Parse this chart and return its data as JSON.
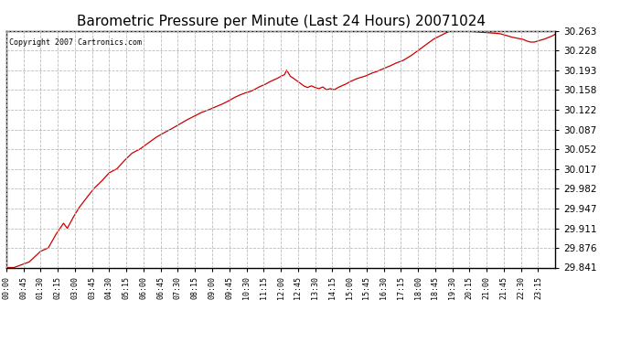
{
  "title": "Barometric Pressure per Minute (Last 24 Hours) 20071024",
  "copyright_text": "Copyright 2007 Cartronics.com",
  "line_color": "#cc0000",
  "background_color": "#ffffff",
  "plot_background": "#ffffff",
  "grid_color": "#bbbbbb",
  "title_fontsize": 11,
  "copyright_fontsize": 6,
  "y_ticks": [
    29.841,
    29.876,
    29.911,
    29.947,
    29.982,
    30.017,
    30.052,
    30.087,
    30.122,
    30.158,
    30.193,
    30.228,
    30.263
  ],
  "y_min": 29.841,
  "y_max": 30.263,
  "x_tick_labels": [
    "00:00",
    "00:45",
    "01:30",
    "02:15",
    "03:00",
    "03:45",
    "04:30",
    "05:15",
    "06:00",
    "06:45",
    "07:30",
    "08:15",
    "09:00",
    "09:45",
    "10:30",
    "11:15",
    "12:00",
    "12:45",
    "13:30",
    "14:15",
    "15:00",
    "15:45",
    "16:30",
    "17:15",
    "18:00",
    "18:45",
    "19:30",
    "20:15",
    "21:00",
    "21:45",
    "22:30",
    "23:15"
  ],
  "x_tick_positions": [
    0,
    45,
    90,
    135,
    180,
    225,
    270,
    315,
    360,
    405,
    450,
    495,
    540,
    585,
    630,
    675,
    720,
    765,
    810,
    855,
    900,
    945,
    990,
    1035,
    1080,
    1125,
    1170,
    1215,
    1260,
    1305,
    1350,
    1395
  ],
  "x_min": 0,
  "x_max": 1440,
  "control_points": [
    [
      0,
      29.841
    ],
    [
      20,
      29.841
    ],
    [
      60,
      29.851
    ],
    [
      90,
      29.87
    ],
    [
      110,
      29.876
    ],
    [
      130,
      29.9
    ],
    [
      150,
      29.92
    ],
    [
      160,
      29.911
    ],
    [
      175,
      29.93
    ],
    [
      190,
      29.947
    ],
    [
      210,
      29.965
    ],
    [
      230,
      29.982
    ],
    [
      250,
      29.995
    ],
    [
      270,
      30.01
    ],
    [
      290,
      30.017
    ],
    [
      310,
      30.032
    ],
    [
      330,
      30.045
    ],
    [
      350,
      30.052
    ],
    [
      370,
      30.062
    ],
    [
      390,
      30.072
    ],
    [
      410,
      30.08
    ],
    [
      430,
      30.087
    ],
    [
      450,
      30.095
    ],
    [
      470,
      30.103
    ],
    [
      490,
      30.11
    ],
    [
      510,
      30.117
    ],
    [
      530,
      30.122
    ],
    [
      550,
      30.128
    ],
    [
      565,
      30.132
    ],
    [
      580,
      30.137
    ],
    [
      595,
      30.143
    ],
    [
      610,
      30.148
    ],
    [
      625,
      30.152
    ],
    [
      640,
      30.155
    ],
    [
      650,
      30.158
    ],
    [
      660,
      30.162
    ],
    [
      670,
      30.165
    ],
    [
      680,
      30.168
    ],
    [
      690,
      30.172
    ],
    [
      700,
      30.175
    ],
    [
      710,
      30.178
    ],
    [
      720,
      30.182
    ],
    [
      730,
      30.185
    ],
    [
      735,
      30.193
    ],
    [
      740,
      30.188
    ],
    [
      745,
      30.182
    ],
    [
      750,
      30.18
    ],
    [
      760,
      30.175
    ],
    [
      770,
      30.17
    ],
    [
      780,
      30.165
    ],
    [
      790,
      30.162
    ],
    [
      800,
      30.165
    ],
    [
      810,
      30.162
    ],
    [
      820,
      30.16
    ],
    [
      830,
      30.163
    ],
    [
      840,
      30.158
    ],
    [
      850,
      30.16
    ],
    [
      860,
      30.158
    ],
    [
      870,
      30.162
    ],
    [
      880,
      30.165
    ],
    [
      890,
      30.168
    ],
    [
      900,
      30.172
    ],
    [
      910,
      30.175
    ],
    [
      920,
      30.178
    ],
    [
      930,
      30.18
    ],
    [
      940,
      30.182
    ],
    [
      950,
      30.185
    ],
    [
      960,
      30.188
    ],
    [
      970,
      30.19
    ],
    [
      980,
      30.193
    ],
    [
      990,
      30.196
    ],
    [
      1005,
      30.2
    ],
    [
      1020,
      30.205
    ],
    [
      1040,
      30.21
    ],
    [
      1060,
      30.218
    ],
    [
      1080,
      30.228
    ],
    [
      1100,
      30.238
    ],
    [
      1120,
      30.248
    ],
    [
      1140,
      30.255
    ],
    [
      1155,
      30.26
    ],
    [
      1165,
      30.263
    ],
    [
      1180,
      30.263
    ],
    [
      1200,
      30.263
    ],
    [
      1220,
      30.262
    ],
    [
      1240,
      30.261
    ],
    [
      1260,
      30.26
    ],
    [
      1280,
      30.259
    ],
    [
      1295,
      30.258
    ],
    [
      1310,
      30.255
    ],
    [
      1325,
      30.252
    ],
    [
      1340,
      30.25
    ],
    [
      1355,
      30.248
    ],
    [
      1365,
      30.245
    ],
    [
      1375,
      30.243
    ],
    [
      1385,
      30.243
    ],
    [
      1395,
      30.245
    ],
    [
      1410,
      30.248
    ],
    [
      1425,
      30.252
    ],
    [
      1435,
      30.255
    ],
    [
      1439,
      30.257
    ]
  ]
}
